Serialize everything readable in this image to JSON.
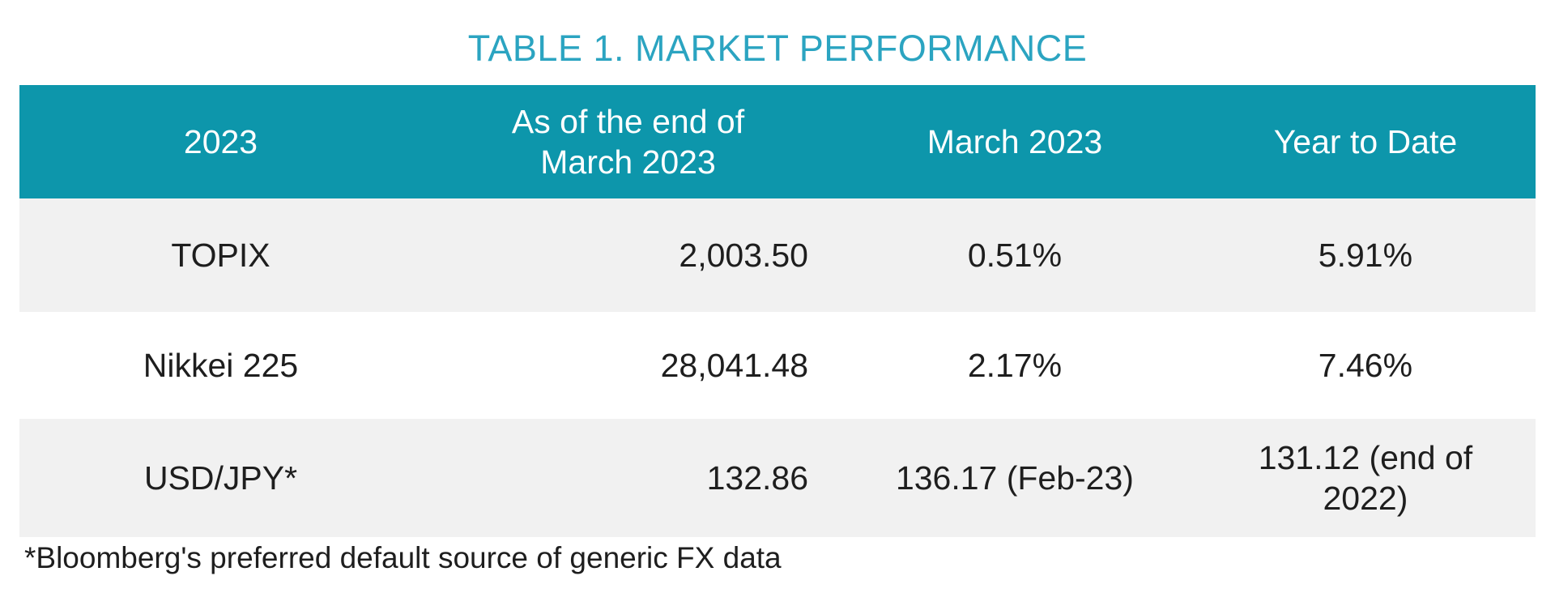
{
  "title": "TABLE 1. MARKET PERFORMANCE",
  "footnote": "*Bloomberg's preferred default source of generic FX data",
  "colors": {
    "header_background": "#0d96ab",
    "header_text": "#ffffff",
    "title_text": "#2ba4c1",
    "alt_row_background": "#f1f1f1",
    "body_text": "#1e1e1e"
  },
  "table": {
    "headers": {
      "col1": "2023",
      "col2": "As of the end of\nMarch 2023",
      "col3": "March 2023",
      "col4": "Year to Date"
    },
    "rows": [
      {
        "label": "TOPIX",
        "end_of_march": "2,003.50",
        "march": "0.51%",
        "ytd": "5.91%"
      },
      {
        "label": "Nikkei 225",
        "end_of_march": "28,041.48",
        "march": "2.17%",
        "ytd": "7.46%"
      },
      {
        "label": "USD/JPY*",
        "end_of_march": "132.86",
        "march": "136.17 (Feb-23)",
        "ytd": "131.12 (end of 2022)"
      }
    ]
  }
}
